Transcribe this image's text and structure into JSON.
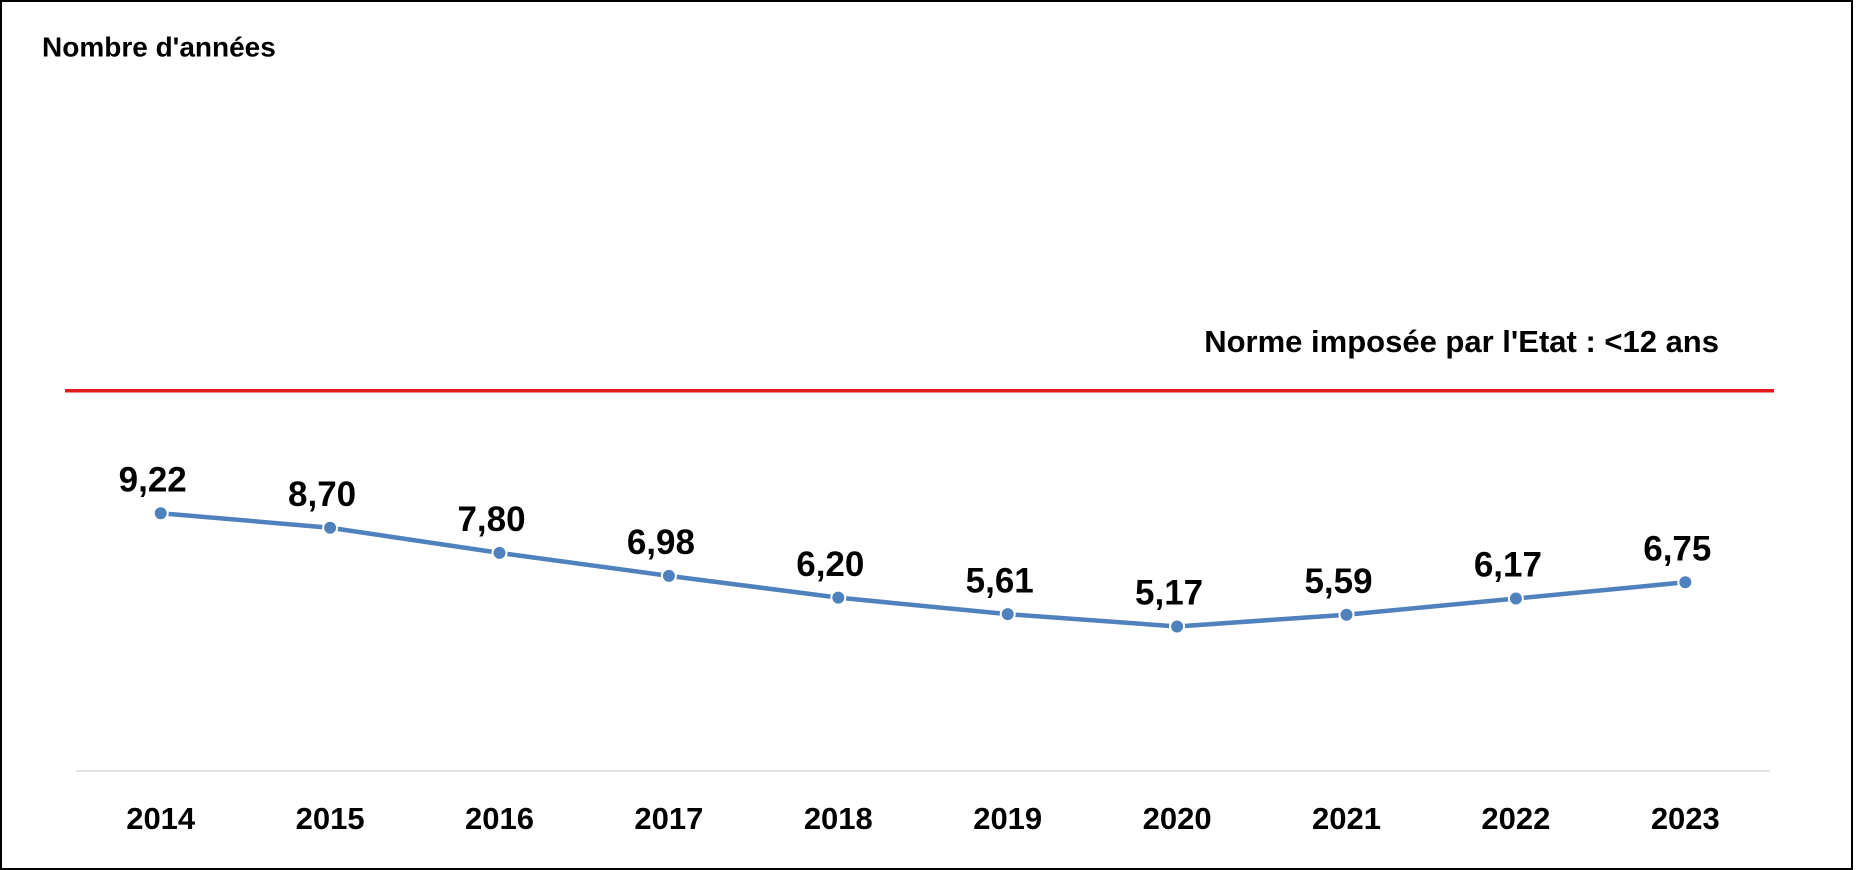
{
  "chart_data": {
    "type": "line",
    "title": "Nombre d'années",
    "categories": [
      "2014",
      "2015",
      "2016",
      "2017",
      "2018",
      "2019",
      "2020",
      "2021",
      "2022",
      "2023"
    ],
    "values": [
      9.22,
      8.7,
      7.8,
      6.98,
      6.2,
      5.61,
      5.17,
      5.59,
      6.17,
      6.75
    ],
    "value_labels": [
      "9,22",
      "8,70",
      "7,80",
      "6,98",
      "6,20",
      "5,61",
      "5,17",
      "5,59",
      "6,17",
      "6,75"
    ],
    "color": "#4f81bd",
    "ylim": [
      0,
      25
    ],
    "reference_line": {
      "value": 13.6,
      "color": "#e31a1c"
    },
    "annotation": "Norme imposée par l'Etat : <12 ans"
  }
}
